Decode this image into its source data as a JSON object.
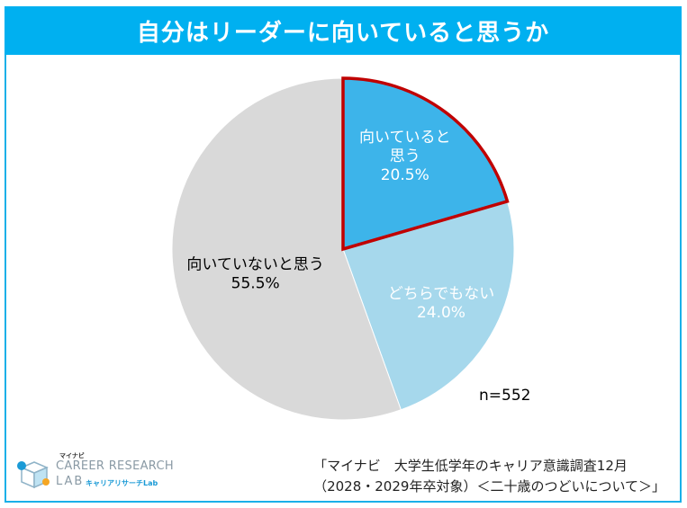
{
  "title": "自分はリーダーに向いていると思うか",
  "chart_data": {
    "type": "pie",
    "slices": [
      {
        "label_lines": [
          "向いていると",
          "思う"
        ],
        "pct_label": "20.5%",
        "value": 20.5,
        "color": "#3db4ea",
        "highlight_color": "#c00000",
        "text_color": "#ffffff"
      },
      {
        "label_lines": [
          "どちらでもない"
        ],
        "pct_label": "24.0%",
        "value": 24.0,
        "color": "#a6d8ec",
        "text_color": "#ffffff"
      },
      {
        "label_lines": [
          "向いていないと思う"
        ],
        "pct_label": "55.5%",
        "value": 55.5,
        "color": "#d9d9d9",
        "text_color": "#000000"
      }
    ],
    "start": "12 o'clock, clockwise"
  },
  "n_label": "n=552",
  "source": {
    "line1": "「マイナビ　大学生低学年のキャリア意識調査12月",
    "line2": "（2028・2029年卒対象）＜二十歳のつどいについて＞」"
  },
  "logo": {
    "top": "マイナビ",
    "main": "CAREER RESEARCH",
    "lab": "LAB",
    "sub": "キャリアリサーチLab"
  }
}
